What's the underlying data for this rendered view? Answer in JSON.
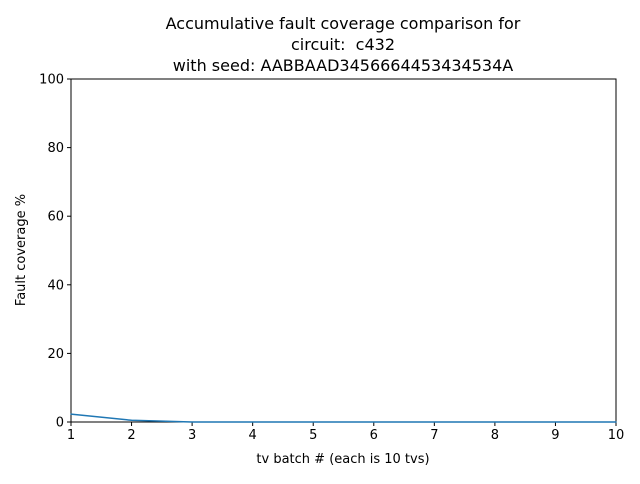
{
  "chart_data": {
    "type": "line",
    "title": [
      "Accumulative fault coverage comparison for",
      "circuit:  c432",
      "with seed: AABBAAD3456664453434534A"
    ],
    "xlabel": "tv batch # (each is 10 tvs)",
    "ylabel": "Fault coverage %",
    "xlim": [
      1,
      10
    ],
    "ylim": [
      0,
      100
    ],
    "xticks": [
      1,
      2,
      3,
      4,
      5,
      6,
      7,
      8,
      9,
      10
    ],
    "yticks": [
      0,
      20,
      40,
      60,
      80,
      100
    ],
    "grid": false,
    "series": [
      {
        "x": [
          1,
          2,
          3,
          4,
          5,
          6,
          7,
          8,
          9,
          10
        ],
        "values": [
          2.3,
          0.5,
          0,
          0,
          0,
          0,
          0,
          0,
          0,
          0
        ],
        "color": "#1f77b4"
      }
    ]
  }
}
